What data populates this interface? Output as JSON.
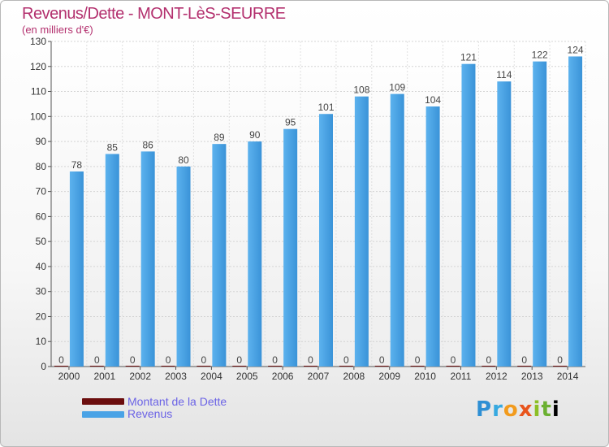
{
  "chart_data": {
    "type": "bar",
    "title": "Revenus/Dette - MONT-LèS-SEURRE",
    "subtitle": "(en milliers d'€)",
    "categories": [
      "2000",
      "2001",
      "2002",
      "2003",
      "2004",
      "2005",
      "2006",
      "2007",
      "2008",
      "2009",
      "2010",
      "2011",
      "2012",
      "2013",
      "2014"
    ],
    "series": [
      {
        "name": "Montant de la Dette",
        "color": "#6b0d0d",
        "values": [
          0,
          0,
          0,
          0,
          0,
          0,
          0,
          0,
          0,
          0,
          0,
          0,
          0,
          0,
          0
        ]
      },
      {
        "name": "Revenus",
        "color": "#4aa3e6",
        "values": [
          78,
          85,
          86,
          80,
          89,
          90,
          95,
          101,
          108,
          109,
          104,
          121,
          114,
          122,
          124
        ]
      }
    ],
    "ylim": [
      0,
      130
    ],
    "yticks": [
      0,
      10,
      20,
      30,
      40,
      50,
      60,
      70,
      80,
      90,
      100,
      110,
      120,
      130
    ],
    "grid": true,
    "legend": "bottom-left"
  },
  "logo": {
    "letters": [
      "P",
      "r",
      "o",
      "x",
      "i",
      "t",
      "i"
    ],
    "text": "Proxiti"
  }
}
